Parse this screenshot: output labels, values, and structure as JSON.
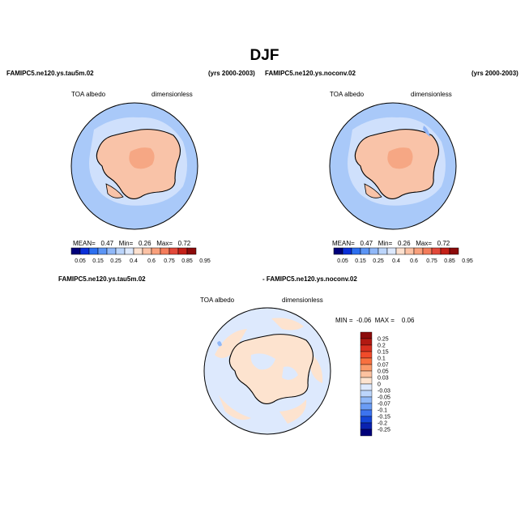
{
  "figure": {
    "title": "DJF",
    "panel_left": {
      "case": "FAMIPC5.ne120.ys.tau5m.02",
      "years": "(yrs 2000-2003)",
      "variable": "TOA albedo",
      "units": "dimensionless",
      "stats": {
        "mean_label": "MEAN=",
        "mean": "0.47",
        "min_label": "Min=",
        "min": "0.26",
        "max_label": "Max=",
        "max": "0.72"
      }
    },
    "panel_right": {
      "case": "FAMIPC5.ne120.ys.noconv.02",
      "years": "(yrs 2000-2003)",
      "variable": "TOA albedo",
      "units": "dimensionless",
      "stats": {
        "mean_label": "MEAN=",
        "mean": "0.47",
        "min_label": "Min=",
        "min": "0.26",
        "max_label": "Max=",
        "max": "0.72"
      }
    },
    "panel_diff": {
      "case_a": "FAMIPC5.ne120.ys.tau5m.02",
      "case_b": "- FAMIPC5.ne120.ys.noconv.02",
      "variable": "TOA albedo",
      "units": "dimensionless",
      "stats": {
        "min_label": "MIN =",
        "min": "-0.06",
        "max_label": "MAX =",
        "max": "0.06"
      }
    }
  },
  "chart_data": [
    {
      "type": "heatmap",
      "projection": "south-polar-stereographic",
      "title": "FAMIPC5.ne120.ys.tau5m.02",
      "variable": "TOA albedo",
      "units": "dimensionless",
      "stats": {
        "mean": 0.47,
        "min": 0.26,
        "max": 0.72
      },
      "colorbar": {
        "orientation": "horizontal",
        "labels": [
          "0.05",
          "0.15",
          "0.25",
          "0.4",
          "0.6",
          "0.75",
          "0.85",
          "0.95"
        ],
        "colors": [
          "#00007a",
          "#0a2fd9",
          "#2c6ff0",
          "#5c95f5",
          "#90b8f8",
          "#bcd5fb",
          "#dde9fd",
          "#fde1cf",
          "#fcc2a5",
          "#f9a07c",
          "#f47c5b",
          "#e2493a",
          "#c42119",
          "#8c0b0b"
        ]
      }
    },
    {
      "type": "heatmap",
      "projection": "south-polar-stereographic",
      "title": "FAMIPC5.ne120.ys.noconv.02",
      "variable": "TOA albedo",
      "units": "dimensionless",
      "stats": {
        "mean": 0.47,
        "min": 0.26,
        "max": 0.72
      },
      "colorbar": {
        "orientation": "horizontal",
        "labels": [
          "0.05",
          "0.15",
          "0.25",
          "0.4",
          "0.6",
          "0.75",
          "0.85",
          "0.95"
        ],
        "colors": [
          "#00007a",
          "#0a2fd9",
          "#2c6ff0",
          "#5c95f5",
          "#90b8f8",
          "#bcd5fb",
          "#dde9fd",
          "#fde1cf",
          "#fcc2a5",
          "#f9a07c",
          "#f47c5b",
          "#e2493a",
          "#c42119",
          "#8c0b0b"
        ]
      }
    },
    {
      "type": "heatmap",
      "projection": "south-polar-stereographic",
      "title": "FAMIPC5.ne120.ys.tau5m.02 - FAMIPC5.ne120.ys.noconv.02",
      "variable": "TOA albedo",
      "units": "dimensionless",
      "stats": {
        "min": -0.06,
        "max": 0.06
      },
      "colorbar": {
        "orientation": "vertical",
        "labels": [
          "0.25",
          "0.2",
          "0.15",
          "0.1",
          "0.07",
          "0.05",
          "0.03",
          "0",
          "-0.03",
          "-0.05",
          "-0.07",
          "-0.1",
          "-0.15",
          "-0.2",
          "-0.25"
        ],
        "colors": [
          "#8c0b0b",
          "#b21a12",
          "#d8301f",
          "#f04b2a",
          "#f8703f",
          "#fa9a6a",
          "#fcc2a0",
          "#fde3cf",
          "#dde9fd",
          "#bcd5fb",
          "#90b8f8",
          "#6a9cf5",
          "#3d74ef",
          "#1446d8",
          "#0a22b0",
          "#00007a"
        ]
      }
    }
  ]
}
